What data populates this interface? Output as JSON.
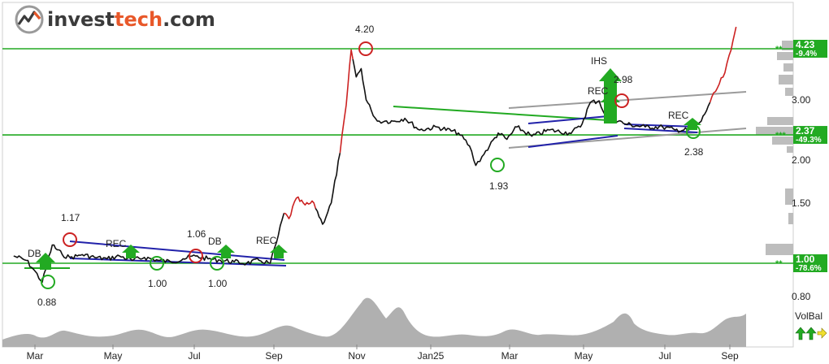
{
  "brand": {
    "prefix": "invest",
    "accent": "tech",
    "suffix": ".com",
    "accent_color": "#e8582a"
  },
  "chart_data": {
    "type": "line",
    "title": "",
    "xlabel": "",
    "ylabel": "",
    "y_scale": "log",
    "ylim": [
      0.72,
      5.6
    ],
    "y_ticks": [
      {
        "value": 4.23,
        "label": "4.23",
        "note": "-9.4%",
        "stars": "**",
        "color": "#22aa22",
        "box": true
      },
      {
        "value": 3.0,
        "label": "3.00"
      },
      {
        "value": 2.37,
        "label": "2.37",
        "note": "-49.3%",
        "stars": "***",
        "color": "#22aa22",
        "box": true
      },
      {
        "value": 2.0,
        "label": "2.00"
      },
      {
        "value": 1.5,
        "label": "1.50"
      },
      {
        "value": 1.0,
        "label": "1.00",
        "note": "-78.6%",
        "stars": "**",
        "color": "#22aa22",
        "box": true
      },
      {
        "value": 0.8,
        "label": "0.80"
      }
    ],
    "x_ticks": [
      "Mar",
      "May",
      "Jul",
      "Sep",
      "Nov",
      "Jan25",
      "Mar",
      "May",
      "Jul",
      "Sep"
    ],
    "support_resistance": [
      4.23,
      2.37,
      1.0
    ],
    "series": [
      {
        "type": "price",
        "x": [
          "2024-02-10",
          "2024-02-20",
          "2024-02-26",
          "2024-03-04",
          "2024-03-08",
          "2024-03-12",
          "2024-03-20",
          "2024-03-26",
          "2024-04-01",
          "2024-04-05",
          "2024-04-15",
          "2024-04-25",
          "2024-05-05",
          "2024-05-15",
          "2024-05-25",
          "2024-06-05",
          "2024-06-15",
          "2024-06-25",
          "2024-07-05",
          "2024-07-15",
          "2024-07-25",
          "2024-08-05",
          "2024-08-15",
          "2024-08-25",
          "2024-09-03",
          "2024-09-08",
          "2024-09-14",
          "2024-09-18",
          "2024-09-24",
          "2024-10-01",
          "2024-10-08",
          "2024-10-15",
          "2024-10-22",
          "2024-10-29",
          "2024-11-03",
          "2024-11-07",
          "2024-11-11",
          "2024-11-15",
          "2024-11-19",
          "2024-11-23",
          "2024-11-28",
          "2024-12-04",
          "2024-12-12",
          "2024-12-20",
          "2025-01-01",
          "2025-01-15",
          "2025-02-01",
          "2025-02-10",
          "2025-02-15",
          "2025-02-20",
          "2025-02-26",
          "2025-03-05",
          "2025-03-12",
          "2025-03-20",
          "2025-04-01",
          "2025-04-15",
          "2025-05-01",
          "2025-05-10",
          "2025-05-18",
          "2025-05-25",
          "2025-05-30",
          "2025-06-05",
          "2025-06-15",
          "2025-07-01",
          "2025-07-15",
          "2025-07-25",
          "2025-08-05",
          "2025-08-15",
          "2025-08-22",
          "2025-08-28",
          "2025-09-03",
          "2025-09-08",
          "2025-09-12"
        ],
        "values": [
          1.05,
          1.02,
          0.96,
          0.88,
          1.0,
          1.13,
          1.06,
          1.04,
          1.05,
          1.06,
          1.04,
          1.03,
          1.05,
          1.02,
          1.04,
          1.02,
          1.01,
          1.03,
          1.05,
          1.03,
          1.02,
          1.01,
          1.0,
          1.02,
          1.0,
          1.15,
          1.4,
          1.35,
          1.55,
          1.48,
          1.5,
          1.3,
          1.5,
          2.1,
          2.9,
          4.2,
          3.5,
          3.7,
          3.0,
          2.8,
          2.6,
          2.6,
          2.6,
          2.65,
          2.45,
          2.5,
          2.4,
          2.2,
          1.93,
          2.05,
          2.2,
          2.4,
          2.3,
          2.5,
          2.35,
          2.45,
          2.4,
          2.5,
          2.95,
          2.98,
          2.7,
          2.65,
          2.55,
          2.5,
          2.5,
          2.45,
          2.45,
          2.6,
          2.95,
          3.25,
          3.6,
          4.2,
          4.9
        ]
      }
    ],
    "annotations": [
      {
        "text": "4.20",
        "value": 4.2
      },
      {
        "text": "1.17",
        "value": 1.17
      },
      {
        "text": "1.06",
        "value": 1.06
      },
      {
        "text": "0.88",
        "value": 0.88
      },
      {
        "text": "1.00",
        "value": 1.0
      },
      {
        "text": "1.00",
        "value": 1.0
      },
      {
        "text": "1.93",
        "value": 1.93
      },
      {
        "text": "2.98",
        "value": 2.98
      },
      {
        "text": "2.38",
        "value": 2.38
      },
      {
        "text": "DB"
      },
      {
        "text": "REC"
      },
      {
        "text": "DB"
      },
      {
        "text": "REC"
      },
      {
        "text": "IHS"
      },
      {
        "text": "REC"
      },
      {
        "text": "REC"
      }
    ],
    "volume_balance": {
      "label": "VolBal"
    }
  },
  "colors": {
    "support": "#22aa22",
    "resistance": "#22aa22",
    "price": "#111111",
    "up_trend": "#cc2222",
    "channel": "#2222aa",
    "trend_green": "#22aa22",
    "trend_gray": "#999999",
    "volume": "#b0b0b0"
  }
}
